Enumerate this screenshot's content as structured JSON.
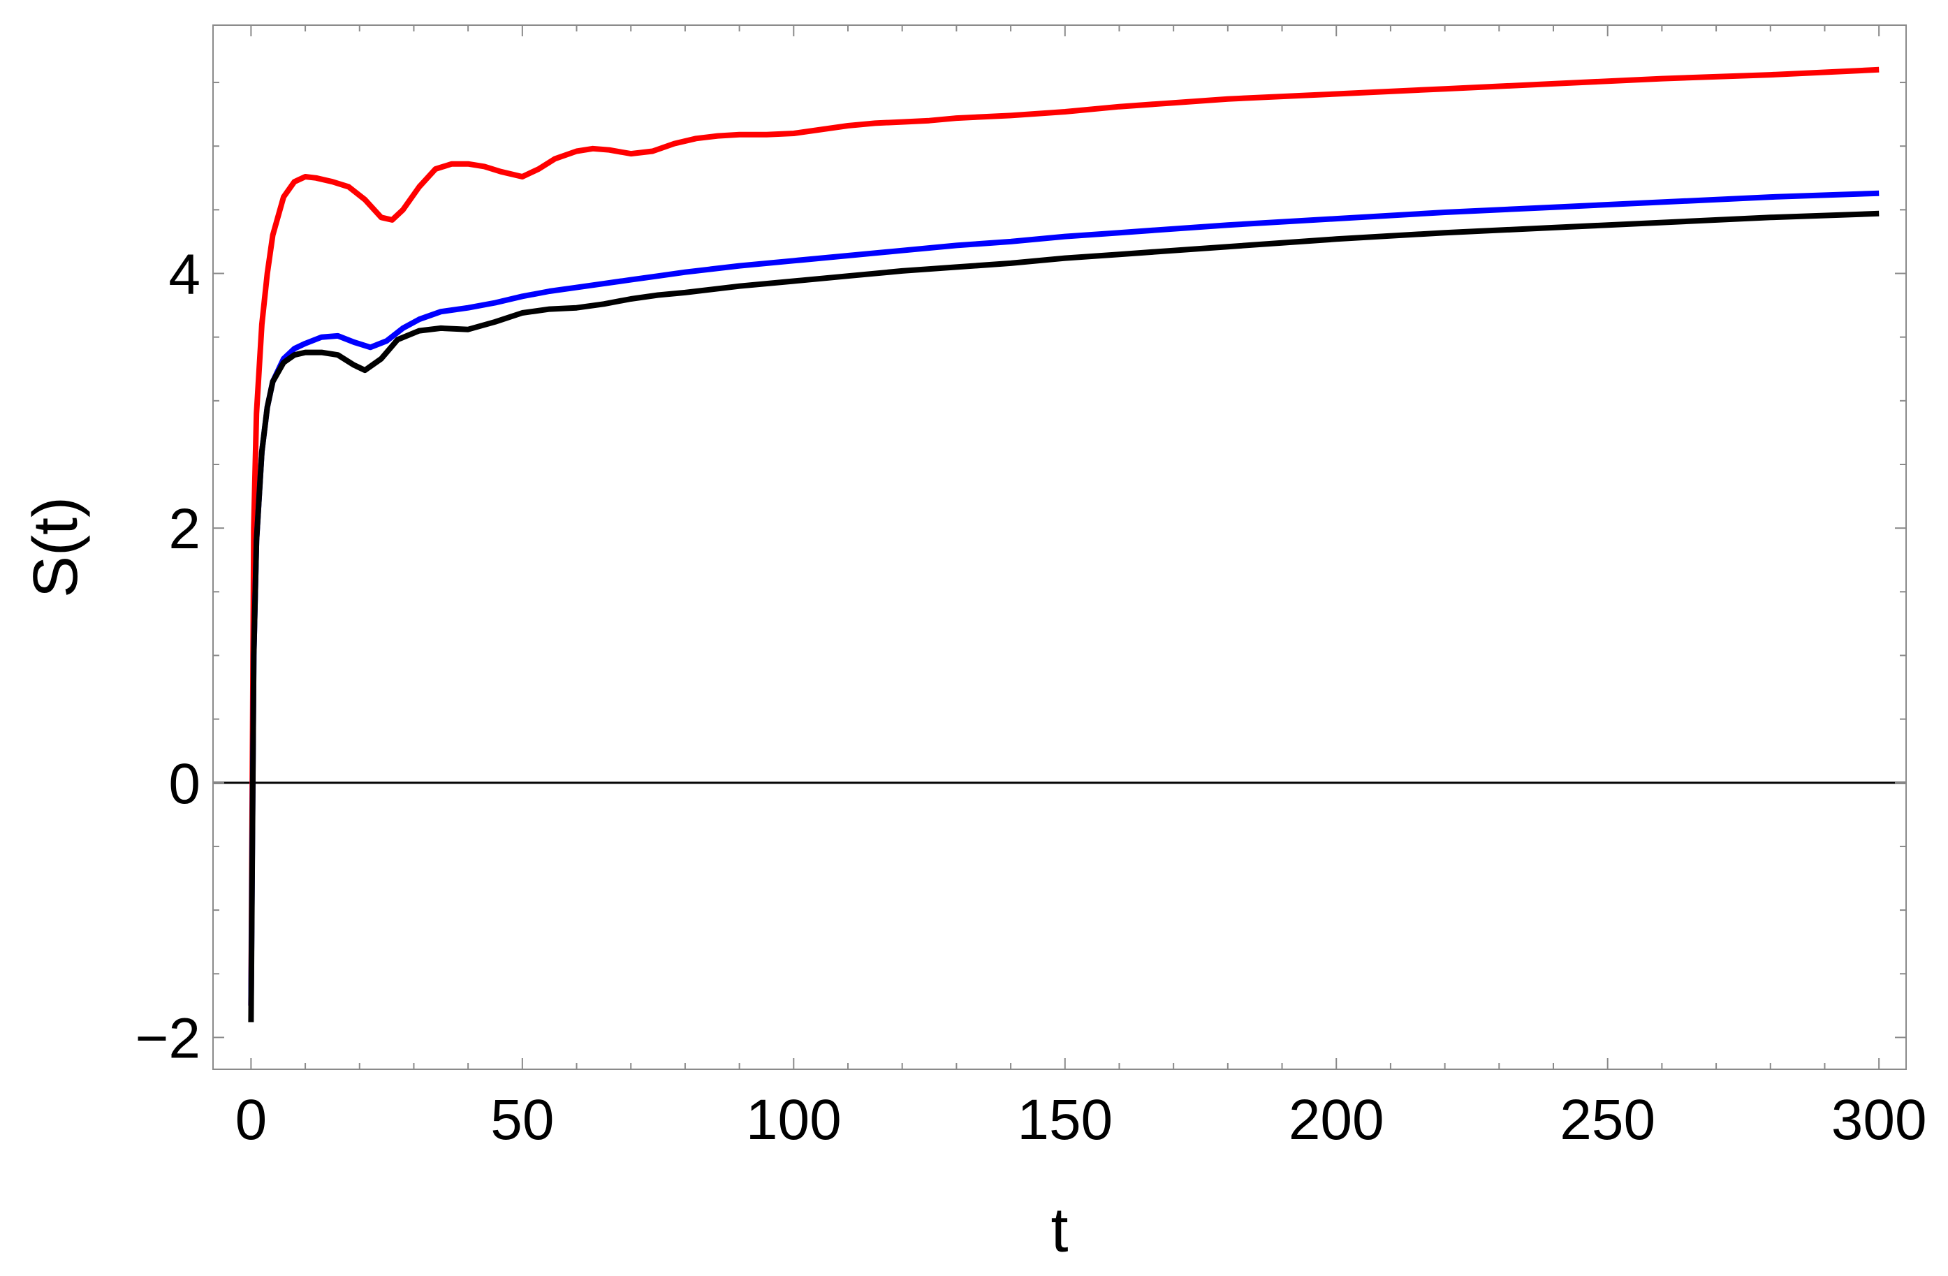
{
  "chart_data": {
    "type": "line",
    "title": "",
    "xlabel": "t",
    "ylabel": "S(t)",
    "xlim": [
      -7,
      305
    ],
    "ylim": [
      -2.25,
      5.95
    ],
    "xticks": [
      0,
      50,
      100,
      150,
      200,
      250,
      300
    ],
    "yticks": [
      -2,
      0,
      2,
      4
    ],
    "xtick_labels": [
      "0",
      "50",
      "100",
      "150",
      "200",
      "250",
      "300"
    ],
    "ytick_labels": [
      "−2",
      "0",
      "2",
      "4"
    ],
    "zero_line": true,
    "grid": false,
    "frame": true,
    "series": [
      {
        "color": "#ff0000",
        "x": [
          0,
          0.5,
          1,
          2,
          3,
          4,
          6,
          8,
          10,
          12,
          15,
          18,
          21,
          24,
          26,
          28,
          31,
          34,
          37,
          40,
          43,
          46,
          50,
          53,
          56,
          60,
          63,
          66,
          70,
          74,
          78,
          82,
          86,
          90,
          95,
          100,
          105,
          110,
          115,
          120,
          125,
          130,
          140,
          150,
          160,
          170,
          180,
          200,
          220,
          240,
          260,
          280,
          300
        ],
        "y": [
          -1.75,
          2.0,
          2.9,
          3.6,
          4.0,
          4.3,
          4.6,
          4.72,
          4.76,
          4.75,
          4.72,
          4.68,
          4.58,
          4.44,
          4.42,
          4.5,
          4.68,
          4.82,
          4.86,
          4.86,
          4.84,
          4.8,
          4.76,
          4.82,
          4.9,
          4.96,
          4.98,
          4.97,
          4.94,
          4.96,
          5.02,
          5.06,
          5.08,
          5.09,
          5.09,
          5.1,
          5.13,
          5.16,
          5.18,
          5.19,
          5.2,
          5.22,
          5.24,
          5.27,
          5.31,
          5.34,
          5.37,
          5.41,
          5.45,
          5.49,
          5.53,
          5.56,
          5.6
        ]
      },
      {
        "color": "#0000ff",
        "x": [
          0,
          0.5,
          1,
          2,
          3,
          4,
          6,
          8,
          10,
          13,
          16,
          19,
          22,
          25,
          28,
          31,
          35,
          40,
          45,
          50,
          55,
          60,
          65,
          70,
          75,
          80,
          90,
          100,
          110,
          120,
          130,
          140,
          150,
          160,
          180,
          200,
          220,
          240,
          260,
          280,
          300
        ],
        "y": [
          -1.75,
          1.0,
          1.9,
          2.6,
          2.95,
          3.15,
          3.33,
          3.41,
          3.45,
          3.5,
          3.51,
          3.46,
          3.42,
          3.47,
          3.57,
          3.64,
          3.7,
          3.73,
          3.77,
          3.82,
          3.86,
          3.89,
          3.92,
          3.95,
          3.98,
          4.01,
          4.06,
          4.1,
          4.14,
          4.18,
          4.22,
          4.25,
          4.29,
          4.32,
          4.38,
          4.43,
          4.48,
          4.52,
          4.56,
          4.6,
          4.63
        ]
      },
      {
        "color": "#000000",
        "x": [
          0,
          0.5,
          1,
          2,
          3,
          4,
          6,
          8,
          10,
          13,
          16,
          19,
          21,
          24,
          27,
          31,
          35,
          40,
          45,
          50,
          55,
          60,
          65,
          70,
          75,
          80,
          90,
          100,
          110,
          120,
          130,
          140,
          150,
          160,
          180,
          200,
          220,
          240,
          260,
          280,
          300
        ],
        "y": [
          -1.88,
          1.0,
          1.9,
          2.6,
          2.95,
          3.15,
          3.3,
          3.36,
          3.38,
          3.38,
          3.36,
          3.28,
          3.24,
          3.33,
          3.48,
          3.55,
          3.57,
          3.56,
          3.62,
          3.69,
          3.72,
          3.73,
          3.76,
          3.8,
          3.83,
          3.85,
          3.9,
          3.94,
          3.98,
          4.02,
          4.05,
          4.08,
          4.12,
          4.15,
          4.21,
          4.27,
          4.32,
          4.36,
          4.4,
          4.44,
          4.47
        ]
      }
    ]
  }
}
